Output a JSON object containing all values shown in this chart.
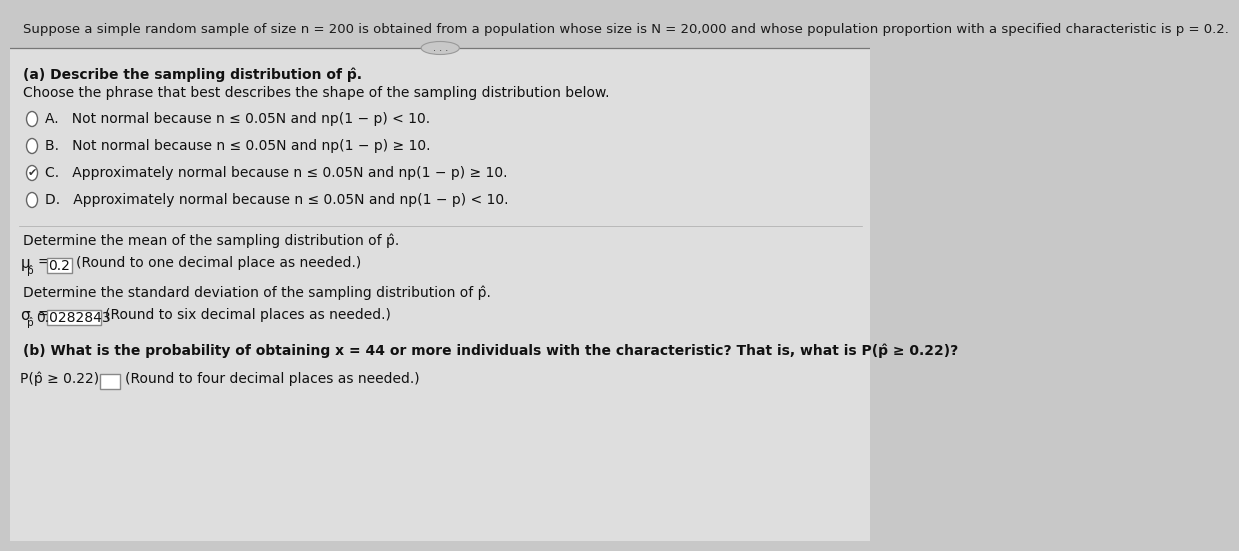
{
  "background_color": "#c8c8c8",
  "header_text": "Suppose a simple random sample of size n = 200 is obtained from a population whose size is N = 20,000 and whose population proportion with a specified characteristic is p = 0.2.",
  "part_a_title": "(a) Describe the sampling distribution of p̂.",
  "part_a_subtitle": "Choose the phrase that best describes the shape of the sampling distribution below.",
  "option_A": "A.   Not normal because n ≤ 0.05N and np(1 − p) < 10.",
  "option_B": "B.   Not normal because n ≤ 0.05N and np(1 − p) ≥ 10.",
  "option_C": "C.   Approximately normal because n ≤ 0.05N and np(1 − p) ≥ 10.",
  "option_D": "D.   Approximately normal because n ≤ 0.05N and np(1 − p) < 10.",
  "mean_label": "Determine the mean of the sampling distribution of p̂.",
  "std_label": "Determine the standard deviation of the sampling distribution of p̂.",
  "part_b_text": "(b) What is the probability of obtaining x = 44 or more individuals with the characteristic? That is, what is P(p̂ ≥ 0.22)?",
  "mean_value": "0.2",
  "std_value": "0.0282843",
  "mean_round": "(Round to one decimal place as needed.)",
  "std_round": "(Round to six decimal places as needed.)",
  "prob_label": "P(p̂ ≥ 0.22) =",
  "prob_round": "(Round to four decimal places as needed.)"
}
